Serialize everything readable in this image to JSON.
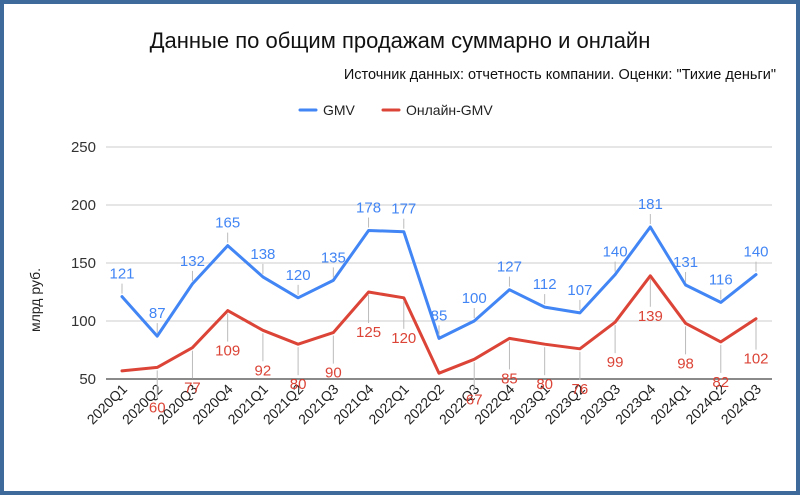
{
  "chart_data": {
    "type": "line",
    "title": "Данные по общим продажам суммарно и онлайн",
    "subtitle": "Источник данных: отчетность компании. Оценки: \"Тихие деньги\"",
    "ylabel": "млрд руб.",
    "xlabel": "",
    "ylim": [
      50,
      250
    ],
    "yticks": [
      "50",
      "100",
      "150",
      "200",
      "250"
    ],
    "grid": true,
    "legend_position": "top",
    "categories": [
      "2020Q1",
      "2020Q2",
      "2020Q3",
      "2020Q4",
      "2021Q1",
      "2021Q2",
      "2021Q3",
      "2021Q4",
      "2022Q1",
      "2022Q2",
      "2022Q3",
      "2022Q4",
      "2023Q1",
      "2023Q2",
      "2023Q3",
      "2023Q4",
      "2024Q1",
      "2024Q2",
      "2024Q3"
    ],
    "series": [
      {
        "name": "GMV",
        "color": "#4285f4",
        "values": [
          121,
          87,
          132,
          165,
          138,
          120,
          135,
          178,
          177,
          85,
          100,
          127,
          112,
          107,
          140,
          181,
          131,
          116,
          140
        ]
      },
      {
        "name": "Онлайн-GMV",
        "color": "#db4437",
        "values": [
          57,
          60,
          77,
          109,
          92,
          80,
          90,
          125,
          120,
          55,
          67,
          85,
          80,
          76,
          99,
          139,
          98,
          82,
          102
        ],
        "labels": [
          null,
          "60",
          "77",
          "109",
          "92",
          "80",
          "90",
          "125",
          "120",
          null,
          "67",
          "85",
          "80",
          "76",
          "99",
          "139",
          "98",
          "82",
          "102"
        ]
      }
    ]
  }
}
